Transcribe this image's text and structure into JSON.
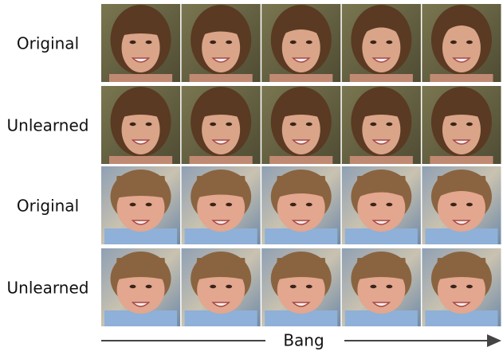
{
  "rows": [
    {
      "label": "Original"
    },
    {
      "label": "Unlearned"
    },
    {
      "label": "Original"
    },
    {
      "label": "Unlearned"
    }
  ],
  "axis_label": "Bang"
}
